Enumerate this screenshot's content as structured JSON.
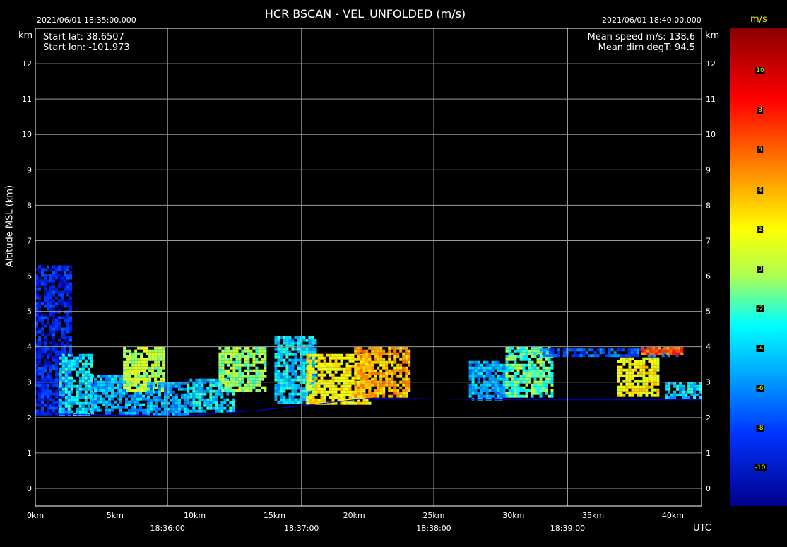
{
  "header": {
    "title": "HCR   BSCAN   -   VEL_UNFOLDED (m/s)",
    "time_start": "2021/06/01 18:35:00.000",
    "time_end": "2021/06/01 18:40:00.000"
  },
  "info_left": {
    "lat": "Start lat: 38.6507",
    "lon": "Start lon: -101.973"
  },
  "info_right": {
    "speed": "Mean speed m/s: 138.6",
    "dirn": "Mean dirn degT: 94.5"
  },
  "axis": {
    "y_unit": "km",
    "ylabel": "Altitude MSL (km)",
    "time_unit": "UTC"
  },
  "colorbar": {
    "unit": "m/s",
    "ticks": [
      "10",
      "8",
      "6",
      "4",
      "2",
      "0",
      "-2",
      "-4",
      "-6",
      "-8",
      "-10"
    ]
  },
  "colors": {
    "background": "#000000",
    "grid": "#9a9a9a",
    "ground_line": "#0000ff",
    "colorbar_label": "#e6e600"
  },
  "chart_data": {
    "type": "heatmap",
    "title": "HCR   BSCAN   -   VEL_UNFOLDED (m/s)",
    "ylabel": "Altitude MSL (km)",
    "ylim": [
      -0.5,
      13
    ],
    "xlim_km": [
      0,
      41.8
    ],
    "yticks": [
      0,
      1,
      2,
      3,
      4,
      5,
      6,
      7,
      8,
      9,
      10,
      11,
      12
    ],
    "xticks_km": [
      0,
      5,
      10,
      15,
      20,
      25,
      30,
      35,
      40
    ],
    "xtick_labels": [
      "0km",
      "5km",
      "10km",
      "15km",
      "20km",
      "25km",
      "30km",
      "35km",
      "40km"
    ],
    "time_ticks": [
      {
        "km": 8.3,
        "label": "18:36:00"
      },
      {
        "km": 16.7,
        "label": "18:37:00"
      },
      {
        "km": 25.0,
        "label": "18:38:00"
      },
      {
        "km": 33.4,
        "label": "18:39:00"
      }
    ],
    "ground": [
      [
        0,
        2.1
      ],
      [
        9.3,
        2.05
      ],
      [
        14,
        2.2
      ],
      [
        17,
        2.35
      ],
      [
        21,
        2.55
      ],
      [
        30,
        2.5
      ],
      [
        41.8,
        2.5
      ]
    ],
    "echo_regions": [
      {
        "x": [
          0,
          2.2
        ],
        "y": [
          2.1,
          6.3
        ],
        "v": -8
      },
      {
        "x": [
          1.5,
          3.5
        ],
        "y": [
          2.1,
          3.8
        ],
        "v": -3
      },
      {
        "x": [
          3.5,
          7
        ],
        "y": [
          2.1,
          3.2
        ],
        "v": -4
      },
      {
        "x": [
          5.5,
          8
        ],
        "y": [
          2.8,
          4.0
        ],
        "v": 1
      },
      {
        "x": [
          7,
          9.5
        ],
        "y": [
          2.1,
          3.0
        ],
        "v": -4
      },
      {
        "x": [
          9.5,
          12.5
        ],
        "y": [
          2.2,
          3.1
        ],
        "v": -3
      },
      {
        "x": [
          11.5,
          14.5
        ],
        "y": [
          2.8,
          4.0
        ],
        "v": 0
      },
      {
        "x": [
          15,
          17.5
        ],
        "y": [
          2.4,
          4.3
        ],
        "v": -3
      },
      {
        "x": [
          17,
          21
        ],
        "y": [
          2.4,
          3.8
        ],
        "v": 3
      },
      {
        "x": [
          20,
          23.5
        ],
        "y": [
          2.6,
          4.0
        ],
        "v": 5
      },
      {
        "x": [
          27.2,
          29.5
        ],
        "y": [
          2.5,
          3.6
        ],
        "v": -4
      },
      {
        "x": [
          29.5,
          32.5
        ],
        "y": [
          2.6,
          4.0
        ],
        "v": -1
      },
      {
        "x": [
          31.5,
          40.5
        ],
        "y": [
          3.75,
          3.95
        ],
        "v": -6
      },
      {
        "x": [
          36.5,
          39
        ],
        "y": [
          2.6,
          3.7
        ],
        "v": 3
      },
      {
        "x": [
          39.5,
          41.8
        ],
        "y": [
          2.6,
          3.0
        ],
        "v": -3
      },
      {
        "x": [
          38,
          40.5
        ],
        "y": [
          3.8,
          4.0
        ],
        "v": 7
      }
    ]
  }
}
